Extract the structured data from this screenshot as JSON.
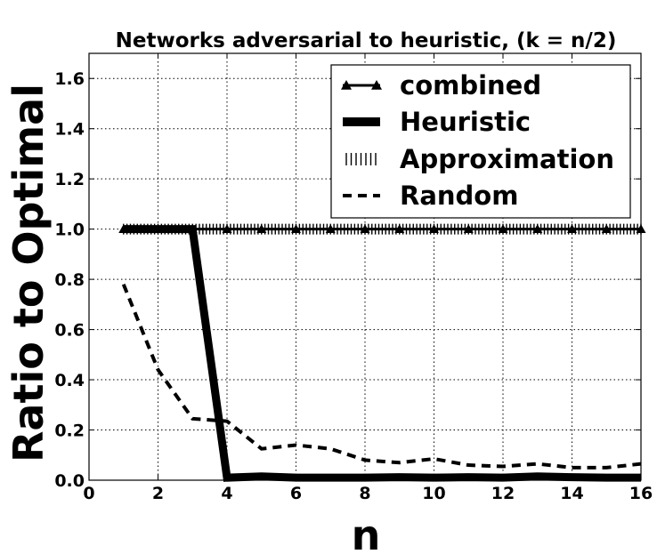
{
  "chart_data": {
    "type": "line",
    "title": "Networks adversarial to heuristic, (k = n/2)",
    "xlabel": "n",
    "ylabel": "Ratio to Optimal",
    "xlim": [
      0,
      16
    ],
    "ylim": [
      0,
      1.7
    ],
    "xticks": [
      0,
      2,
      4,
      6,
      8,
      10,
      12,
      14,
      16
    ],
    "yticks": [
      0.0,
      0.2,
      0.4,
      0.6,
      0.8,
      1.0,
      1.2,
      1.4,
      1.6
    ],
    "grid": true,
    "legend_position": "top-right",
    "x": [
      1,
      2,
      3,
      4,
      5,
      6,
      7,
      8,
      9,
      10,
      11,
      12,
      13,
      14,
      15,
      16
    ],
    "series": [
      {
        "name": "combined",
        "style": "solid-triangles",
        "values": [
          1,
          1,
          1,
          1,
          1,
          1,
          1,
          1,
          1,
          1,
          1,
          1,
          1,
          1,
          1,
          1
        ]
      },
      {
        "name": "Heuristic",
        "style": "thick",
        "values": [
          1,
          1,
          1,
          0.01,
          0.015,
          0.01,
          0.01,
          0.01,
          0.012,
          0.01,
          0.012,
          0.01,
          0.015,
          0.012,
          0.01,
          0.01
        ]
      },
      {
        "name": "Approximation",
        "style": "vertical-ticks",
        "values": [
          1,
          1,
          1,
          1,
          1,
          1,
          1,
          1,
          1,
          1,
          1,
          1,
          1,
          1,
          1,
          1
        ]
      },
      {
        "name": "Random",
        "style": "dashed",
        "values": [
          0.78,
          0.44,
          0.245,
          0.235,
          0.125,
          0.14,
          0.125,
          0.08,
          0.07,
          0.085,
          0.06,
          0.055,
          0.065,
          0.05,
          0.05,
          0.065
        ]
      }
    ]
  }
}
